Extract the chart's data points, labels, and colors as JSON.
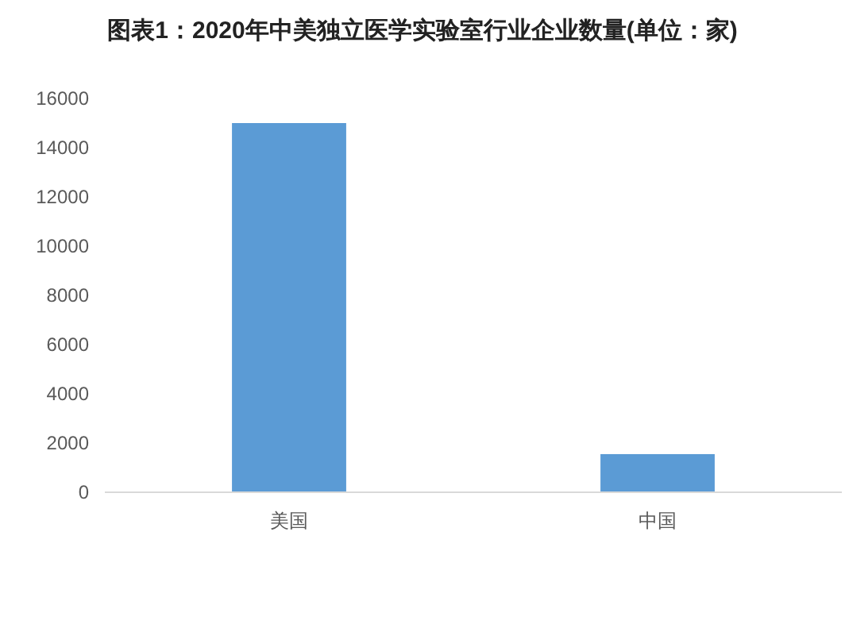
{
  "chart_data": {
    "type": "bar",
    "title": "图表1：2020年中美独立医学实验室行业企业数量(单位：家)",
    "categories": [
      "美国",
      "中国"
    ],
    "values": [
      15000,
      1550
    ],
    "color": "#5b9bd5",
    "ylim": [
      0,
      16000
    ],
    "yticks": [
      0,
      2000,
      4000,
      6000,
      8000,
      10000,
      12000,
      14000,
      16000
    ],
    "grid": false
  }
}
